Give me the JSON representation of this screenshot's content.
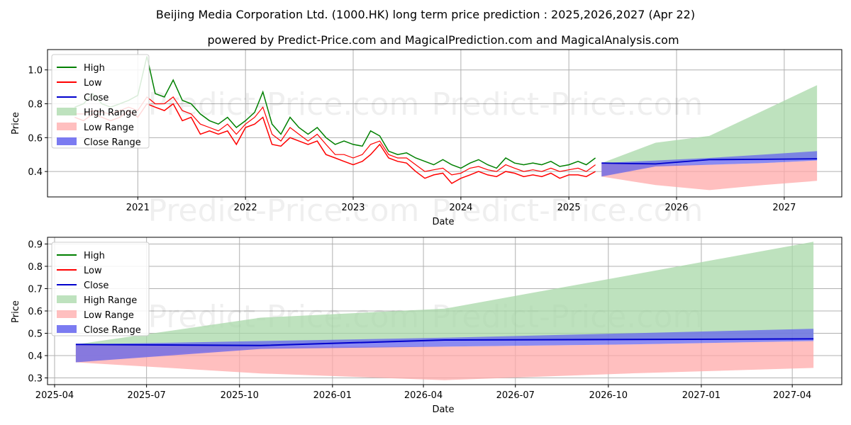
{
  "title": "Beijing Media Corporation Ltd. (1000.HK) long term price prediction : 2025,2026,2027 (Apr 22)",
  "subtitle": "powered by Predict-Price.com and MagicalPrediction.com and MagicalAnalysis.com",
  "watermark": "Predict-Price.com",
  "colors": {
    "high": "#008000",
    "low": "#ff0000",
    "close": "#0000cd",
    "high_range": "#a8d8a8",
    "low_range": "#ffaaaa",
    "close_range": "#6464ee"
  },
  "legend_labels": [
    "High",
    "Low",
    "Close",
    "High Range",
    "Low Range",
    "Close Range"
  ],
  "chart_data": [
    {
      "type": "line",
      "xlabel": "Date",
      "ylabel": "Price",
      "legend_position": "upper-left",
      "grid": true,
      "xlim": [
        "2020-03-01",
        "2027-07-15"
      ],
      "ylim": [
        0.25,
        1.12
      ],
      "x_ticks": [
        "2021",
        "2022",
        "2023",
        "2024",
        "2025",
        "2026",
        "2027"
      ],
      "y_ticks": [
        "0.4",
        "0.6",
        "0.8",
        "1.0"
      ],
      "history": {
        "dates": [
          "2020-06-01",
          "2020-07-01",
          "2020-08-01",
          "2020-09-01",
          "2020-10-01",
          "2020-11-01",
          "2020-12-01",
          "2021-01-01",
          "2021-02-01",
          "2021-03-01",
          "2021-04-01",
          "2021-05-01",
          "2021-06-01",
          "2021-07-01",
          "2021-08-01",
          "2021-09-01",
          "2021-10-01",
          "2021-11-01",
          "2021-12-01",
          "2022-01-01",
          "2022-02-01",
          "2022-03-01",
          "2022-04-01",
          "2022-05-01",
          "2022-06-01",
          "2022-07-01",
          "2022-08-01",
          "2022-09-01",
          "2022-10-01",
          "2022-11-01",
          "2022-12-01",
          "2023-01-01",
          "2023-02-01",
          "2023-03-01",
          "2023-04-01",
          "2023-05-01",
          "2023-06-01",
          "2023-07-01",
          "2023-08-01",
          "2023-09-01",
          "2023-10-01",
          "2023-11-01",
          "2023-12-01",
          "2024-01-01",
          "2024-02-01",
          "2024-03-01",
          "2024-04-01",
          "2024-05-01",
          "2024-06-01",
          "2024-07-01",
          "2024-08-01",
          "2024-09-01",
          "2024-10-01",
          "2024-11-01",
          "2024-12-01",
          "2025-01-01",
          "2025-02-01",
          "2025-03-01",
          "2025-04-01"
        ],
        "high": [
          0.78,
          0.8,
          0.86,
          0.8,
          0.78,
          0.8,
          0.82,
          0.85,
          1.08,
          0.86,
          0.84,
          0.94,
          0.82,
          0.8,
          0.74,
          0.7,
          0.68,
          0.72,
          0.66,
          0.7,
          0.75,
          0.87,
          0.68,
          0.62,
          0.72,
          0.66,
          0.62,
          0.66,
          0.6,
          0.56,
          0.58,
          0.56,
          0.55,
          0.64,
          0.61,
          0.52,
          0.5,
          0.51,
          0.48,
          0.46,
          0.44,
          0.47,
          0.44,
          0.42,
          0.45,
          0.47,
          0.44,
          0.42,
          0.48,
          0.45,
          0.44,
          0.45,
          0.44,
          0.46,
          0.43,
          0.44,
          0.46,
          0.44,
          0.48
        ],
        "low": [
          0.72,
          0.7,
          0.74,
          0.72,
          0.7,
          0.72,
          0.76,
          0.72,
          0.8,
          0.78,
          0.76,
          0.8,
          0.7,
          0.72,
          0.62,
          0.64,
          0.62,
          0.64,
          0.56,
          0.66,
          0.68,
          0.72,
          0.56,
          0.55,
          0.6,
          0.58,
          0.56,
          0.58,
          0.5,
          0.48,
          0.46,
          0.44,
          0.46,
          0.5,
          0.56,
          0.48,
          0.46,
          0.45,
          0.4,
          0.36,
          0.38,
          0.39,
          0.33,
          0.36,
          0.38,
          0.4,
          0.38,
          0.37,
          0.4,
          0.39,
          0.37,
          0.38,
          0.37,
          0.39,
          0.36,
          0.38,
          0.38,
          0.37,
          0.4
        ],
        "close": [
          0.74,
          0.74,
          0.76,
          0.75,
          0.74,
          0.76,
          0.78,
          0.76,
          0.84,
          0.8,
          0.8,
          0.84,
          0.76,
          0.74,
          0.68,
          0.66,
          0.64,
          0.68,
          0.62,
          0.68,
          0.72,
          0.78,
          0.62,
          0.58,
          0.66,
          0.62,
          0.58,
          0.62,
          0.56,
          0.5,
          0.5,
          0.48,
          0.5,
          0.56,
          0.58,
          0.5,
          0.48,
          0.48,
          0.44,
          0.4,
          0.41,
          0.42,
          0.38,
          0.39,
          0.42,
          0.43,
          0.41,
          0.4,
          0.44,
          0.42,
          0.4,
          0.41,
          0.4,
          0.42,
          0.4,
          0.41,
          0.42,
          0.4,
          0.44
        ]
      },
      "prediction": {
        "dates": [
          "2025-04-22",
          "2025-10-22",
          "2026-04-22",
          "2026-10-22",
          "2027-04-22"
        ],
        "close": [
          0.45,
          0.445,
          0.47,
          0.472,
          0.475
        ],
        "high_range": [
          [
            0.37,
            0.45
          ],
          [
            0.44,
            0.57
          ],
          [
            0.47,
            0.61
          ],
          [
            0.47,
            0.76
          ],
          [
            0.48,
            0.91
          ]
        ],
        "low_range": [
          [
            0.37,
            0.45
          ],
          [
            0.32,
            0.44
          ],
          [
            0.29,
            0.44
          ],
          [
            0.32,
            0.45
          ],
          [
            0.345,
            0.465
          ]
        ],
        "close_range": [
          [
            0.37,
            0.45
          ],
          [
            0.43,
            0.465
          ],
          [
            0.44,
            0.48
          ],
          [
            0.45,
            0.5
          ],
          [
            0.465,
            0.52
          ]
        ]
      }
    },
    {
      "type": "line",
      "xlabel": "Date",
      "ylabel": "Price",
      "legend_position": "upper-left",
      "grid": true,
      "xlim": [
        "2025-03-25",
        "2027-05-20"
      ],
      "ylim": [
        0.27,
        0.93
      ],
      "x_ticks": [
        "2025-04",
        "2025-07",
        "2025-10",
        "2026-01",
        "2026-04",
        "2026-07",
        "2026-10",
        "2027-01",
        "2027-04"
      ],
      "y_ticks": [
        "0.3",
        "0.4",
        "0.5",
        "0.6",
        "0.7",
        "0.8",
        "0.9"
      ],
      "prediction": {
        "dates": [
          "2025-04-22",
          "2025-10-22",
          "2026-04-22",
          "2026-10-22",
          "2027-04-22"
        ],
        "close": [
          0.45,
          0.445,
          0.47,
          0.472,
          0.475
        ],
        "high_range": [
          [
            0.37,
            0.45
          ],
          [
            0.44,
            0.57
          ],
          [
            0.47,
            0.61
          ],
          [
            0.47,
            0.76
          ],
          [
            0.48,
            0.91
          ]
        ],
        "low_range": [
          [
            0.37,
            0.45
          ],
          [
            0.32,
            0.44
          ],
          [
            0.29,
            0.44
          ],
          [
            0.32,
            0.45
          ],
          [
            0.345,
            0.465
          ]
        ],
        "close_range": [
          [
            0.37,
            0.45
          ],
          [
            0.43,
            0.465
          ],
          [
            0.44,
            0.48
          ],
          [
            0.45,
            0.5
          ],
          [
            0.465,
            0.52
          ]
        ]
      }
    }
  ]
}
